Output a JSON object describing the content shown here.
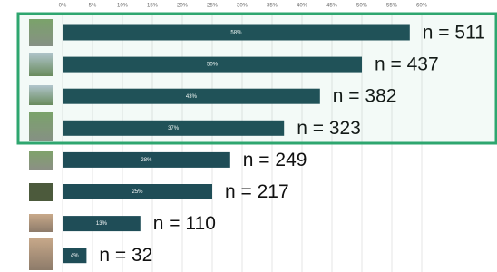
{
  "chart_data": {
    "type": "bar",
    "orientation": "horizontal",
    "values": [
      58,
      50,
      43,
      37,
      28,
      25,
      13,
      4
    ],
    "value_labels": [
      "58%",
      "50%",
      "43%",
      "37%",
      "28%",
      "25%",
      "13%",
      "4%"
    ],
    "count_labels": [
      "n = 511",
      "n = 437",
      "n = 382",
      "n = 323",
      "n = 249",
      "n = 217",
      "n = 110",
      "n = 32"
    ],
    "color": "#1f4d57",
    "xlim": [
      0,
      60
    ],
    "xticks": [
      {
        "value": 0,
        "label": "0%"
      },
      {
        "value": 5,
        "label": "5%"
      },
      {
        "value": 10,
        "label": "10%"
      },
      {
        "value": 15,
        "label": "15%"
      },
      {
        "value": 20,
        "label": "20%"
      },
      {
        "value": 25,
        "label": "25%"
      },
      {
        "value": 30,
        "label": "30%"
      },
      {
        "value": 35,
        "label": "35%"
      },
      {
        "value": 40,
        "label": "40%"
      },
      {
        "value": 45,
        "label": "45%"
      },
      {
        "value": 50,
        "label": "50%"
      },
      {
        "value": 55,
        "label": "55%"
      },
      {
        "value": 60,
        "label": "60%"
      }
    ],
    "grid": true,
    "highlight_color": "#2ea66f"
  }
}
